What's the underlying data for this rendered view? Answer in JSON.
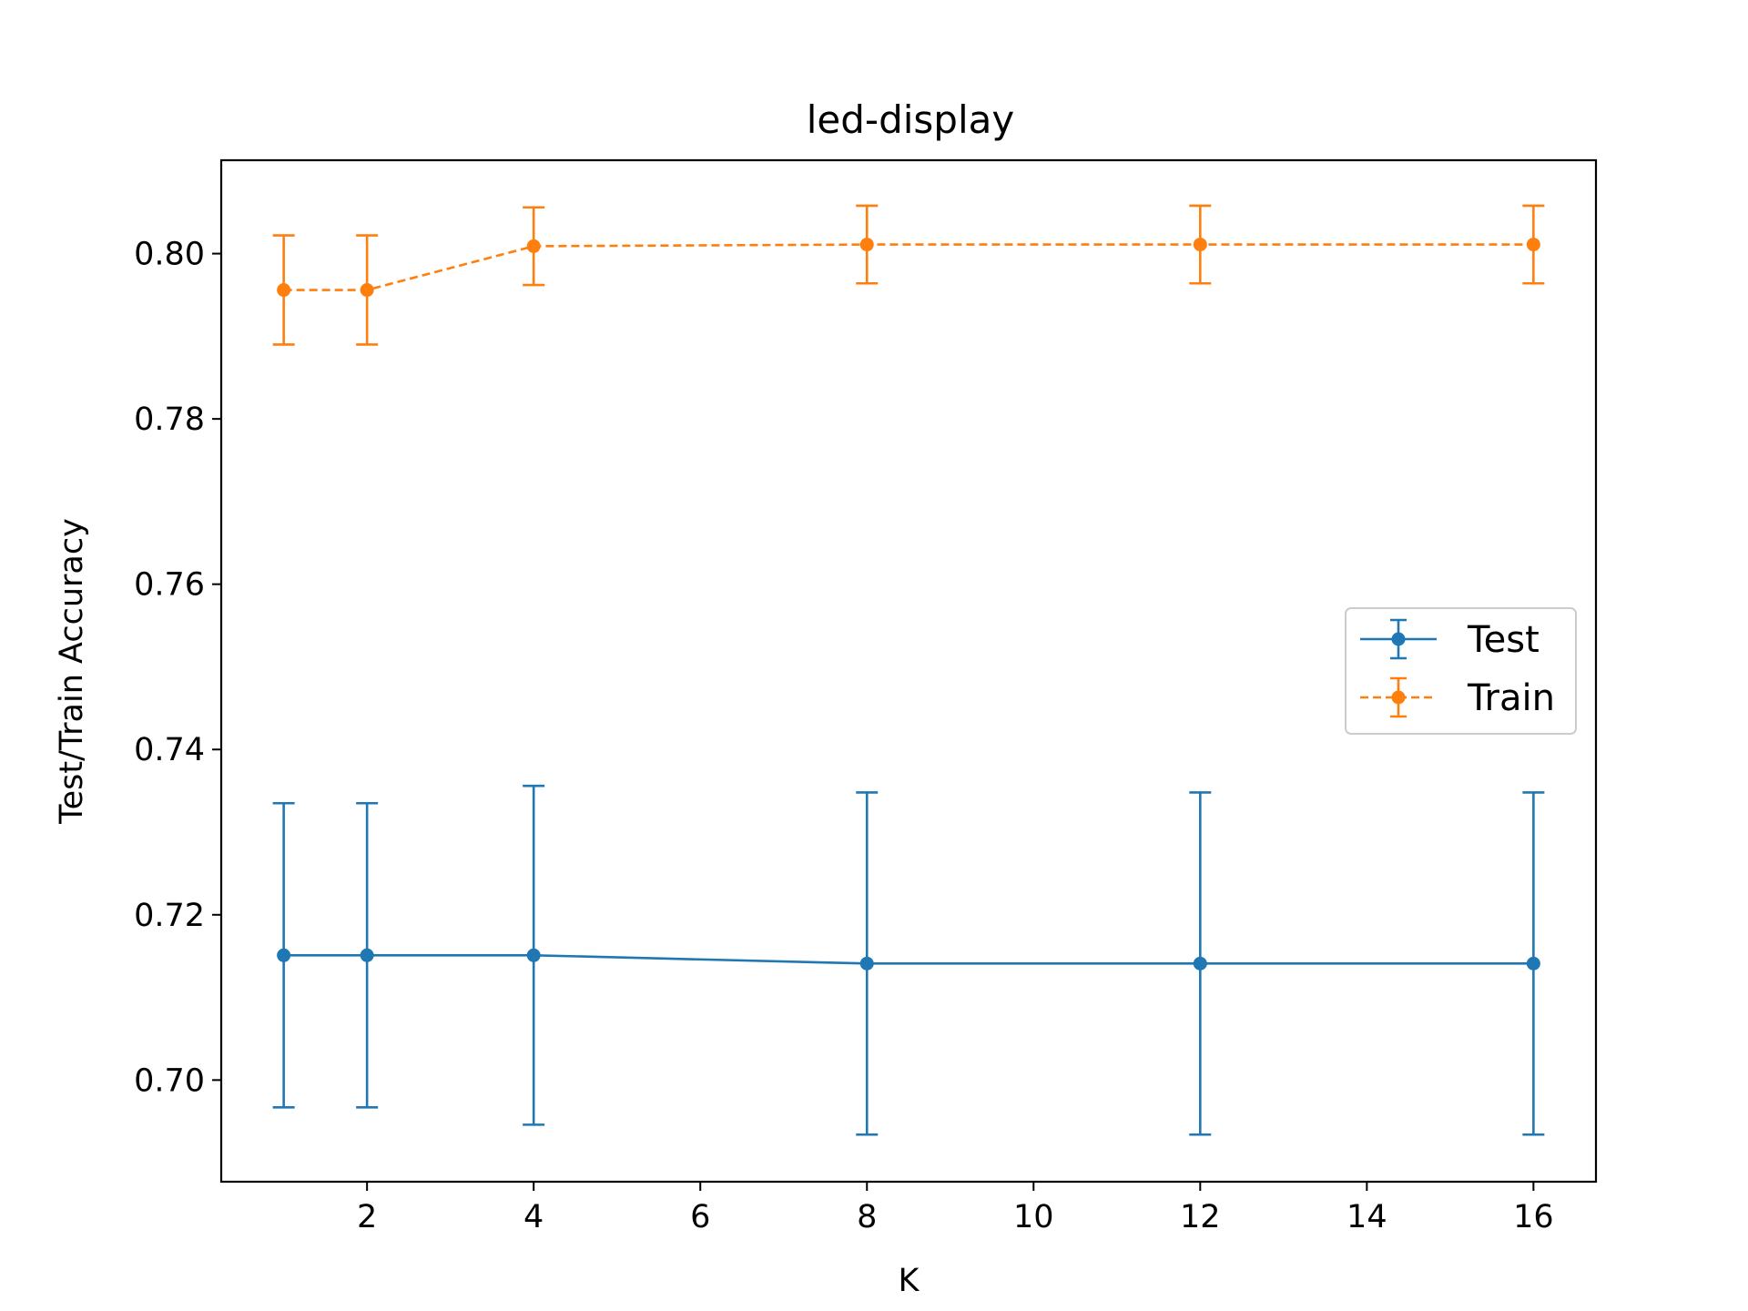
{
  "chart_data": {
    "type": "line",
    "title": "led-display",
    "xlabel": "K",
    "ylabel": "Test/Train Accuracy",
    "x": [
      1,
      2,
      4,
      8,
      12,
      16
    ],
    "xlim": [
      0.25,
      16.75
    ],
    "ylim": [
      0.6877,
      0.8113
    ],
    "xticks": [
      2,
      4,
      6,
      8,
      10,
      12,
      14,
      16
    ],
    "yticks": [
      0.7,
      0.72,
      0.74,
      0.76,
      0.78,
      0.8
    ],
    "xtick_labels": [
      "2",
      "4",
      "6",
      "8",
      "10",
      "12",
      "14",
      "16"
    ],
    "ytick_labels": [
      "0.70",
      "0.72",
      "0.74",
      "0.76",
      "0.78",
      "0.80"
    ],
    "grid": false,
    "legend_position": "center-right",
    "series": [
      {
        "name": "Test",
        "color": "#1f77b4",
        "line_style": "solid",
        "values": [
          0.7151,
          0.7151,
          0.7151,
          0.7141,
          0.7141,
          0.7141
        ],
        "error": [
          0.0184,
          0.0184,
          0.0205,
          0.0207,
          0.0207,
          0.0207
        ]
      },
      {
        "name": "Train",
        "color": "#ff7f0e",
        "line_style": "dashed",
        "values": [
          0.7956,
          0.7956,
          0.8009,
          0.8011,
          0.8011,
          0.8011
        ],
        "error": [
          0.0066,
          0.0066,
          0.0047,
          0.0047,
          0.0047,
          0.0047
        ]
      }
    ]
  }
}
